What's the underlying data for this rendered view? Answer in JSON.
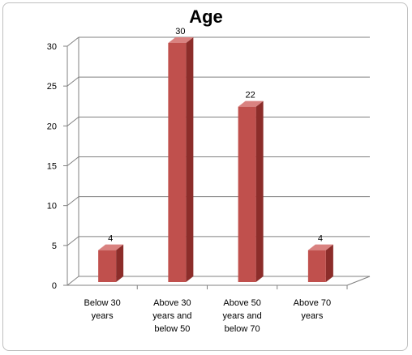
{
  "chart_data": {
    "type": "bar",
    "title": "Age",
    "categories": [
      [
        "Below 30",
        "years"
      ],
      [
        "Above 30",
        "years and",
        "below 50"
      ],
      [
        "Above 50",
        "years and",
        "below 70"
      ],
      [
        "Above 70",
        "years"
      ]
    ],
    "values": [
      4,
      30,
      22,
      4
    ],
    "data_labels": [
      "4",
      "30",
      "22",
      "4"
    ],
    "ylim": [
      0,
      30
    ],
    "yticks": [
      "0",
      "5",
      "10",
      "15",
      "20",
      "25",
      "30"
    ],
    "grid": true,
    "style": "3d-column",
    "colors": {
      "bar_front": "#c0504d",
      "bar_side": "#8c2d2a",
      "bar_top": "#d98280",
      "grid": "#808080"
    }
  }
}
